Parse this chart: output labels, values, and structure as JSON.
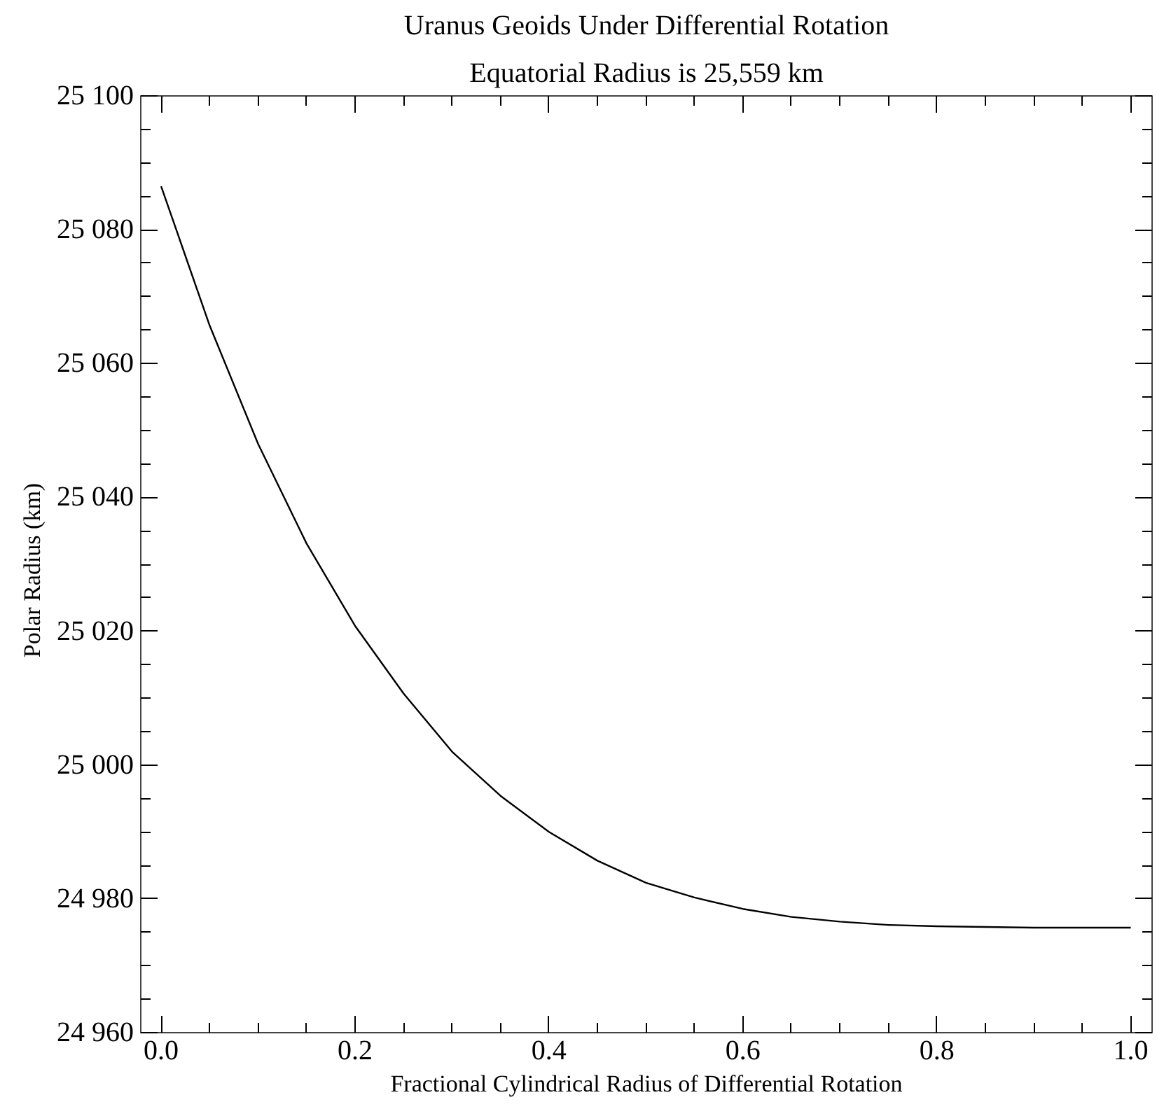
{
  "chart_data": {
    "type": "line",
    "title": "Uranus Geoids Under Differential Rotation",
    "subtitle": "Equatorial Radius is 25,559 km",
    "xlabel": "Fractional Cylindrical Radius of Differential Rotation",
    "ylabel": "Polar  Radius  (km)",
    "x": [
      0,
      0.05,
      0.1,
      0.15,
      0.2,
      0.25,
      0.3,
      0.35,
      0.4,
      0.45,
      0.5,
      0.55,
      0.6,
      0.65,
      0.7,
      0.75,
      0.8,
      0.85,
      0.9,
      0.95,
      1.0
    ],
    "series": [
      {
        "color": "#000000",
        "values": [
          25086.5,
          25065.7,
          25048.0,
          25033.1,
          25020.8,
          25010.7,
          25002.0,
          24995.4,
          24990.0,
          24985.7,
          24982.4,
          24980.2,
          24978.5,
          24977.3,
          24976.6,
          24976.1,
          24975.9,
          24975.8,
          24975.7,
          24975.7,
          24975.7
        ]
      }
    ],
    "xlim": [
      -0.021,
      1.022
    ],
    "ylim": [
      24960,
      25100
    ],
    "xticks": [
      {
        "value": 0,
        "label": "0.0"
      },
      {
        "value": 0.2,
        "label": "0.2"
      },
      {
        "value": 0.4,
        "label": "0.4"
      },
      {
        "value": 0.6,
        "label": "0.6"
      },
      {
        "value": 0.8,
        "label": "0.8"
      },
      {
        "value": 1.0,
        "label": "1.0"
      }
    ],
    "yticks": [
      {
        "value": 24960,
        "label": "24 960"
      },
      {
        "value": 24980,
        "label": "24 980"
      },
      {
        "value": 25000,
        "label": "25 000"
      },
      {
        "value": 25020,
        "label": "25 020"
      },
      {
        "value": 25040,
        "label": "25 040"
      },
      {
        "value": 25060,
        "label": "25 060"
      },
      {
        "value": 25080,
        "label": "25 080"
      },
      {
        "value": 25100,
        "label": "25 100"
      }
    ],
    "grid": false,
    "marker": "none",
    "line_style": "solid"
  }
}
